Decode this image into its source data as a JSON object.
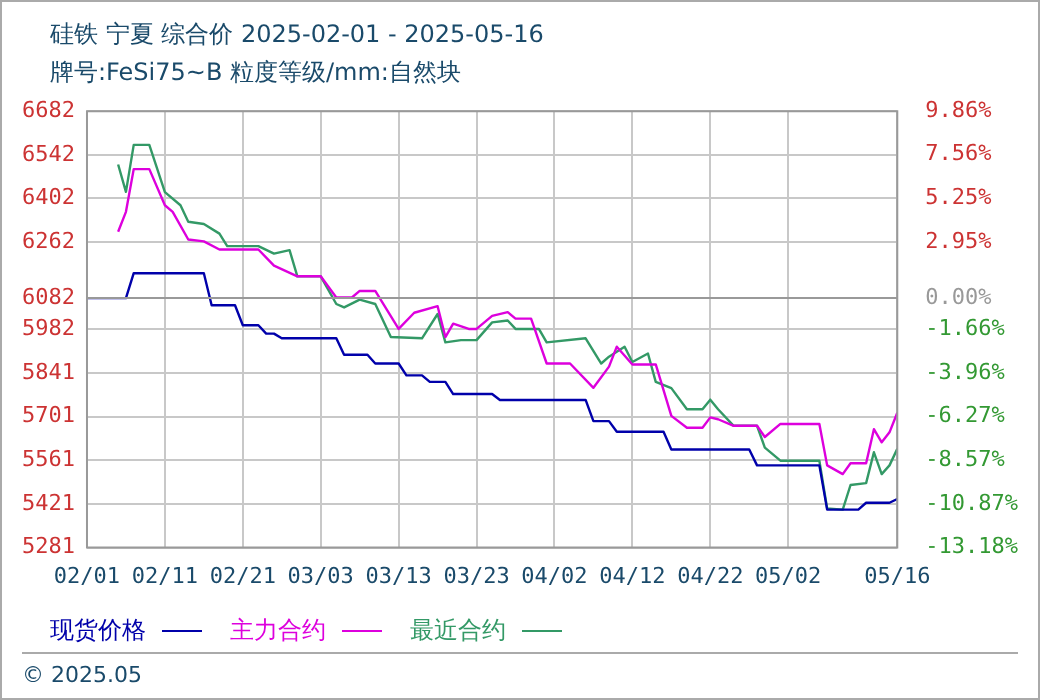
{
  "chart_data": {
    "type": "line",
    "title": "硅铁 宁夏 综合价 2025-02-01 - 2025-05-16",
    "subtitle": "牌号:FeSi75~B 粒度等级/mm:自然块",
    "xlim": [
      "2025-02-01",
      "2025-05-16"
    ],
    "xticks": [
      {
        "value": "2025-02-01",
        "label": "02/01"
      },
      {
        "value": "2025-02-11",
        "label": "02/11"
      },
      {
        "value": "2025-02-21",
        "label": "02/21"
      },
      {
        "value": "2025-03-03",
        "label": "03/03"
      },
      {
        "value": "2025-03-13",
        "label": "03/13"
      },
      {
        "value": "2025-03-23",
        "label": "03/23"
      },
      {
        "value": "2025-04-02",
        "label": "04/02"
      },
      {
        "value": "2025-04-12",
        "label": "04/12"
      },
      {
        "value": "2025-04-22",
        "label": "04/22"
      },
      {
        "value": "2025-05-02",
        "label": "05/02"
      },
      {
        "value": "2025-05-16",
        "label": "05/16"
      }
    ],
    "ylim": [
      5281,
      6682
    ],
    "yticks": [
      5281,
      5421,
      5561,
      5701,
      5841,
      5982,
      6082,
      6262,
      6402,
      6542,
      6682
    ],
    "y2lim": [
      -13.18,
      9.86
    ],
    "y2ticks": [
      {
        "value": -13.18,
        "label": "-13.18%"
      },
      {
        "value": -10.87,
        "label": "-10.87%"
      },
      {
        "value": -8.57,
        "label": "-8.57%"
      },
      {
        "value": -6.27,
        "label": "-6.27%"
      },
      {
        "value": -3.96,
        "label": "-3.96%"
      },
      {
        "value": -1.66,
        "label": "-1.66%"
      },
      {
        "value": 0,
        "label": "0.00%"
      },
      {
        "value": 2.95,
        "label": "2.95%"
      },
      {
        "value": 5.25,
        "label": "5.25%"
      },
      {
        "value": 7.56,
        "label": "7.56%"
      },
      {
        "value": 9.86,
        "label": "9.86%"
      }
    ],
    "grid": true,
    "legend": "bottom",
    "marker": "none",
    "line_style": "solid",
    "ref_lines": [
      {
        "axis": "y2",
        "value": 0,
        "color": "#999999"
      }
    ],
    "annotations": [
      "© 2025.05"
    ],
    "series": [
      {
        "name": "现货价格",
        "color": "#0000aa",
        "x": [
          "2025-02-01",
          "2025-02-06",
          "2025-02-07",
          "2025-02-16",
          "2025-02-17",
          "2025-02-20",
          "2025-02-21",
          "2025-02-23",
          "2025-02-24",
          "2025-02-25",
          "2025-02-26",
          "2025-03-05",
          "2025-03-06",
          "2025-03-09",
          "2025-03-10",
          "2025-03-13",
          "2025-03-14",
          "2025-03-16",
          "2025-03-17",
          "2025-03-19",
          "2025-03-20",
          "2025-03-25",
          "2025-03-26",
          "2025-04-06",
          "2025-04-07",
          "2025-04-09",
          "2025-04-10",
          "2025-04-16",
          "2025-04-17",
          "2025-04-27",
          "2025-04-28",
          "2025-05-06",
          "2025-05-07",
          "2025-05-11",
          "2025-05-12",
          "2025-05-15",
          "2025-05-16"
        ],
        "values": [
          6082,
          6082,
          6162,
          6162,
          6059,
          6059,
          5995,
          5995,
          5968,
          5968,
          5953,
          5953,
          5900,
          5900,
          5872,
          5872,
          5834,
          5834,
          5813,
          5813,
          5774,
          5774,
          5755,
          5755,
          5687,
          5687,
          5653,
          5653,
          5596,
          5596,
          5545,
          5545,
          5403,
          5403,
          5425,
          5425,
          5437
        ]
      },
      {
        "name": "主力合约",
        "color": "#dd00dd",
        "x": [
          "2025-02-05",
          "2025-02-06",
          "2025-02-07",
          "2025-02-09",
          "2025-02-11",
          "2025-02-12",
          "2025-02-14",
          "2025-02-16",
          "2025-02-18",
          "2025-02-23",
          "2025-02-25",
          "2025-02-28",
          "2025-03-03",
          "2025-03-05",
          "2025-03-07",
          "2025-03-08",
          "2025-03-10",
          "2025-03-13",
          "2025-03-15",
          "2025-03-18",
          "2025-03-19",
          "2025-03-20",
          "2025-03-22",
          "2025-03-23",
          "2025-03-25",
          "2025-03-27",
          "2025-03-28",
          "2025-03-30",
          "2025-04-01",
          "2025-04-04",
          "2025-04-07",
          "2025-04-09",
          "2025-04-10",
          "2025-04-12",
          "2025-04-15",
          "2025-04-17",
          "2025-04-19",
          "2025-04-21",
          "2025-04-22",
          "2025-04-23",
          "2025-04-25",
          "2025-04-28",
          "2025-04-29",
          "2025-05-01",
          "2025-05-06",
          "2025-05-07",
          "2025-05-09",
          "2025-05-10",
          "2025-05-12",
          "2025-05-13",
          "2025-05-14",
          "2025-05-15",
          "2025-05-16"
        ],
        "values": [
          6295,
          6359,
          6496,
          6496,
          6380,
          6359,
          6270,
          6264,
          6238,
          6238,
          6186,
          6152,
          6152,
          6084,
          6084,
          6105,
          6105,
          5983,
          6035,
          6056,
          5957,
          6000,
          5983,
          5983,
          6025,
          6037,
          6016,
          6016,
          5872,
          5872,
          5794,
          5862,
          5926,
          5869,
          5869,
          5704,
          5666,
          5666,
          5699,
          5693,
          5672,
          5672,
          5636,
          5678,
          5678,
          5545,
          5517,
          5552,
          5552,
          5661,
          5619,
          5651,
          5714
        ]
      },
      {
        "name": "最近合约",
        "color": "#339966",
        "x": [
          "2025-02-05",
          "2025-02-06",
          "2025-02-07",
          "2025-02-09",
          "2025-02-11",
          "2025-02-13",
          "2025-02-14",
          "2025-02-16",
          "2025-02-18",
          "2025-02-19",
          "2025-02-23",
          "2025-02-25",
          "2025-02-27",
          "2025-02-28",
          "2025-03-03",
          "2025-03-05",
          "2025-03-06",
          "2025-03-08",
          "2025-03-10",
          "2025-03-12",
          "2025-03-16",
          "2025-03-18",
          "2025-03-19",
          "2025-03-21",
          "2025-03-23",
          "2025-03-25",
          "2025-03-27",
          "2025-03-28",
          "2025-03-31",
          "2025-04-01",
          "2025-04-06",
          "2025-04-08",
          "2025-04-09",
          "2025-04-11",
          "2025-04-12",
          "2025-04-14",
          "2025-04-15",
          "2025-04-17",
          "2025-04-19",
          "2025-04-21",
          "2025-04-22",
          "2025-04-23",
          "2025-04-25",
          "2025-04-28",
          "2025-04-29",
          "2025-05-01",
          "2025-05-06",
          "2025-05-07",
          "2025-05-09",
          "2025-05-10",
          "2025-05-12",
          "2025-05-13",
          "2025-05-14",
          "2025-05-15",
          "2025-05-16"
        ],
        "values": [
          6511,
          6423,
          6574,
          6574,
          6422,
          6380,
          6327,
          6320,
          6289,
          6249,
          6249,
          6225,
          6236,
          6152,
          6152,
          6063,
          6052,
          6077,
          6063,
          5957,
          5953,
          6031,
          5940,
          5947,
          5947,
          6004,
          6010,
          5983,
          5983,
          5940,
          5953,
          5872,
          5894,
          5926,
          5877,
          5904,
          5813,
          5793,
          5725,
          5725,
          5756,
          5725,
          5672,
          5672,
          5602,
          5560,
          5560,
          5407,
          5403,
          5482,
          5488,
          5587,
          5517,
          5545,
          5598
        ]
      }
    ]
  }
}
